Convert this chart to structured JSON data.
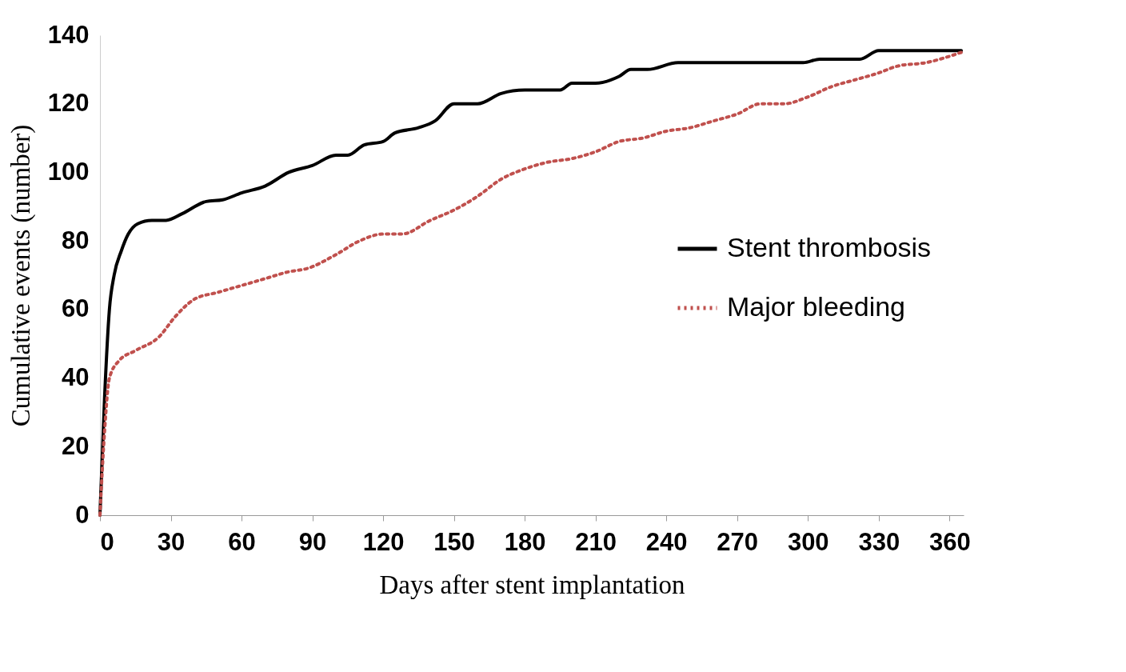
{
  "chart_data": {
    "type": "line",
    "xlabel": "Days after stent implantation",
    "ylabel": "Cumulative events (number)",
    "xlim": [
      0,
      366
    ],
    "xticks": [
      0,
      30,
      60,
      90,
      120,
      150,
      180,
      210,
      240,
      270,
      300,
      330,
      360
    ],
    "ylim": [
      0,
      140
    ],
    "yticks": [
      0,
      20,
      40,
      60,
      80,
      100,
      120,
      140
    ],
    "legend": "right",
    "grid": false,
    "marker": "none",
    "series": [
      {
        "name": "Stent thrombosis",
        "color": "#000000",
        "line_style": "solid",
        "x": [
          0,
          2,
          4,
          6,
          9,
          12,
          16,
          22,
          28,
          35,
          45,
          52,
          60,
          70,
          80,
          90,
          100,
          105,
          112,
          120,
          125,
          135,
          142,
          150,
          160,
          170,
          180,
          195,
          200,
          210,
          220,
          225,
          232,
          245,
          260,
          280,
          298,
          305,
          322,
          330,
          345,
          365
        ],
        "values": [
          0,
          35,
          60,
          70,
          77,
          82,
          85,
          86,
          86,
          88,
          91.5,
          92,
          94,
          96,
          100,
          102,
          105,
          105,
          108,
          109,
          111.5,
          113,
          115,
          120,
          120,
          123,
          124,
          124,
          126,
          126,
          128,
          130,
          130,
          132,
          132,
          132,
          132,
          133,
          133,
          135.5,
          135.5,
          135.5
        ]
      },
      {
        "name": "Major bleeding",
        "color": "#c0504d",
        "line_style": "dotted",
        "x": [
          0,
          2,
          4,
          8,
          15,
          25,
          32,
          40,
          50,
          60,
          70,
          80,
          88,
          100,
          110,
          120,
          128,
          140,
          150,
          160,
          170,
          180,
          190,
          200,
          210,
          220,
          230,
          240,
          250,
          260,
          270,
          280,
          290,
          300,
          310,
          320,
          330,
          338,
          350,
          365
        ],
        "values": [
          0,
          25,
          40,
          45,
          48,
          52,
          58,
          63,
          65,
          67,
          69,
          71,
          72,
          76,
          80,
          82,
          82,
          86,
          89,
          93,
          98,
          101,
          103,
          104,
          106,
          109,
          110,
          112,
          113,
          115,
          117,
          120,
          120,
          122,
          125,
          127,
          129,
          131,
          132,
          135
        ]
      }
    ]
  }
}
